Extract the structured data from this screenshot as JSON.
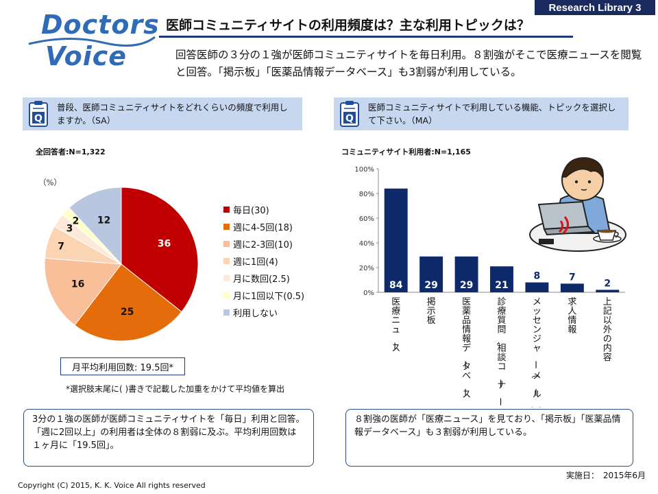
{
  "logo": {
    "line1": "Doctors",
    "line2": "Voice"
  },
  "badge": "Research Library 3",
  "title": "医師コミュニティサイトの利用頻度は？主な利用トピックは？",
  "summary": "回答医師の３分の１強が医師コミュニティサイトを毎日利用。８割強がそこで医療ニュースを閲覧と回答。「掲示板」「医薬品情報データベース」も3割弱が利用している。",
  "left_question": "普段、医師コミュニティサイトをどれくらいの頻度で利用しますか。（SA）",
  "right_question": "医師コミュニティサイトで利用している機能、トピックを選択して下さい。（MA）",
  "left_n": "全回答者:N=1,322",
  "right_n": "コミュニティサイト利用者:N=1,165",
  "pct_unit": "（%）",
  "avg_label": "月平均利用回数: 19.5回*",
  "footnote": "*選択肢末尾に( )書きで記載した加重をかけて平均値を算出",
  "left_comment": "3分の１強の医師が医師コミュニティサイトを「毎日」利用と回答。「週に2回以上」の利用者は全体の８割弱に及ぶ。平均利用回数は１ヶ月に「19.5回」。",
  "right_comment": "８割強の医師が「医療ニュース」を見ており、「掲示板」「医薬品情報データベース」も３割弱が利用している。",
  "copyright": "Copyright (C) 2015, K. K. Voice  All rights reserved",
  "survey_date": "実施日：　2015年6月",
  "chart_data": [
    {
      "type": "pie",
      "categories": [
        "毎日(30)",
        "週に4-5回(18)",
        "週に2-3回(10)",
        "週に1回(4)",
        "月に数回(2.5)",
        "月に1回以下(0.5)",
        "利用しない"
      ],
      "values": [
        36,
        25,
        16,
        7,
        3,
        2,
        12
      ],
      "value_labels": [
        "36",
        "25",
        "16",
        "7",
        "3",
        "2",
        "12"
      ],
      "colors": [
        "#c00000",
        "#e46c0a",
        "#f9bf99",
        "#fbd4b4",
        "#fde9d9",
        "#ffffcc",
        "#b8c7df"
      ],
      "legend": "right"
    },
    {
      "type": "bar",
      "categories": [
        "医療ニュース",
        "掲示板",
        "医薬品情報データベース",
        "診療質問、相談コーナー",
        "メッセンジャー（メール）",
        "求人情報",
        "上記以外の内容"
      ],
      "values": [
        84,
        29,
        29,
        21,
        8,
        7,
        2
      ],
      "value_labels": [
        "84",
        "29",
        "29",
        "21",
        "8",
        "7",
        "2"
      ],
      "y_ticks": [
        "0%",
        "20%",
        "40%",
        "60%",
        "80%",
        "100%"
      ],
      "ylim": [
        0,
        100
      ],
      "color": "#0f2a6b"
    }
  ]
}
